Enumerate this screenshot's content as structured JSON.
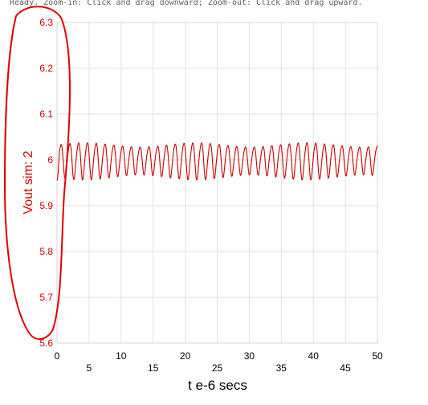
{
  "status": {
    "message": "Ready.  Zoom-in: Click and drag downward; Zoom-out: Click and drag upward."
  },
  "colors": {
    "series": "#cc0000",
    "grid": "#e2e2e2",
    "annotation": "#e00000",
    "ytick": "#cc0000",
    "xtick": "#000000"
  },
  "chart_data": {
    "type": "line",
    "title": "",
    "xlabel": "t e-6 secs",
    "ylabel": "Vout sim:  2",
    "xlim": [
      0,
      50
    ],
    "ylim": [
      5.6,
      6.3
    ],
    "grid": true,
    "x_ticks_upper": [
      "0",
      "10",
      "20",
      "30",
      "40",
      "50"
    ],
    "x_ticks_lower": [
      "5",
      "15",
      "25",
      "35",
      "45"
    ],
    "y_ticks": [
      "6.3",
      "6.2",
      "6.1",
      "6",
      "5.9",
      "5.8",
      "5.7",
      "5.6"
    ],
    "series": [
      {
        "name": "",
        "waveform": {
          "start_x": 0,
          "end_x": 50,
          "center": 6.0,
          "period": 1.37,
          "amplitude_peak_to_peak": [
            0.06,
            0.08
          ],
          "start_level": 5.955
        }
      }
    ],
    "annotation": "red-ellipse-around-y-axis"
  }
}
